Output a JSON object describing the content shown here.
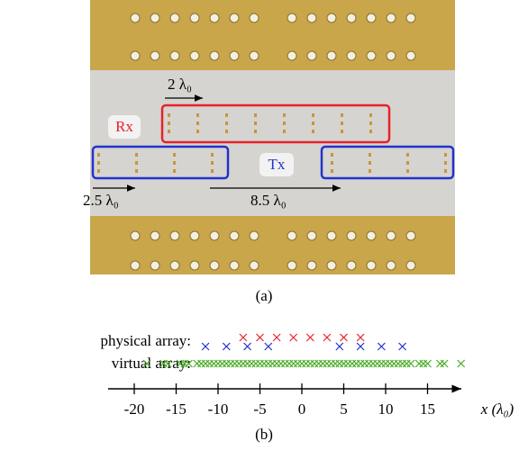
{
  "photo": {
    "rx_label": "Rx",
    "tx_label": "Tx",
    "rx_spacing": "2 λ₀",
    "tx_spacing": "2.5 λ₀",
    "tx_gap": "8.5 λ₀",
    "caption": "(a)"
  },
  "chart_data": {
    "type": "strip",
    "caption": "(b)",
    "xlabel": "x (λ₀)",
    "rows": [
      {
        "label": "physical array:",
        "series": [
          {
            "color": "#e8222a",
            "x": [
              -7,
              -5,
              -3,
              -1,
              1,
              3,
              5,
              7
            ]
          },
          {
            "color": "#2233cc",
            "x": [
              -11.5,
              -9,
              -6.5,
              -4,
              4.5,
              7,
              9.5,
              12
            ]
          }
        ]
      },
      {
        "label": "virtual array:",
        "series": [
          {
            "color": "#44aa22",
            "x": [
              -18.5,
              -16.5,
              -14.5,
              -12.5,
              -10.5,
              -8.5,
              -6.5,
              -4.5,
              -16,
              -14,
              -12,
              -10,
              -8,
              -6,
              -4,
              -2,
              -13.5,
              -11.5,
              -9.5,
              -7.5,
              -5.5,
              -3.5,
              -1.5,
              0.5,
              -11,
              -9,
              -7,
              -5,
              -3,
              -1,
              1,
              3,
              -2.5,
              -0.5,
              1.5,
              3.5,
              5.5,
              7.5,
              9.5,
              11.5,
              0,
              2,
              4,
              6,
              8,
              10,
              12,
              14,
              2.5,
              4.5,
              6.5,
              8.5,
              10.5,
              12.5,
              14.5,
              16.5,
              5,
              7,
              9,
              11,
              13,
              15,
              17,
              19
            ]
          }
        ]
      }
    ],
    "xlim": [
      -22,
      20
    ],
    "xticks": [
      -20,
      -15,
      -10,
      -5,
      0,
      5,
      10,
      15
    ]
  }
}
